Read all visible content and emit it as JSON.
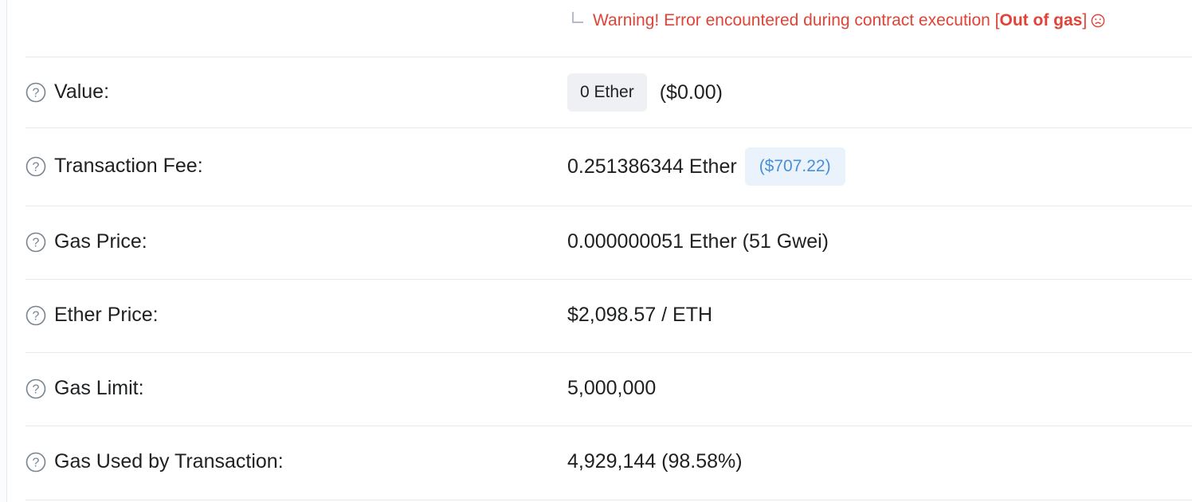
{
  "warning": {
    "prefix": "Warning! Error encountered during contract execution [",
    "emphasis": "Out of gas",
    "suffix": "]"
  },
  "rows": {
    "value": {
      "label": "Value:",
      "amount_pill": "0 Ether",
      "usd": "($0.00)"
    },
    "transaction_fee": {
      "label": "Transaction Fee:",
      "amount": "0.251386344 Ether",
      "usd_pill": "($707.22)"
    },
    "gas_price": {
      "label": "Gas Price:",
      "value": "0.000000051 Ether (51 Gwei)"
    },
    "ether_price": {
      "label": "Ether Price:",
      "value": "$2,098.57 / ETH"
    },
    "gas_limit": {
      "label": "Gas Limit:",
      "value": "5,000,000"
    },
    "gas_used": {
      "label": "Gas Used by Transaction:",
      "value": "4,929,144 (98.58%)"
    }
  },
  "icons": {
    "help": "question-circle-icon",
    "warning_corner": "corner-arrow-icon",
    "sad": "sad-face-icon"
  },
  "colors": {
    "warning_red": "#de4437",
    "link_blue": "#4a8fd4",
    "pill_gray": "#eef0f3",
    "pill_blue": "#eaf3fc",
    "divider": "#e7eaf3"
  }
}
